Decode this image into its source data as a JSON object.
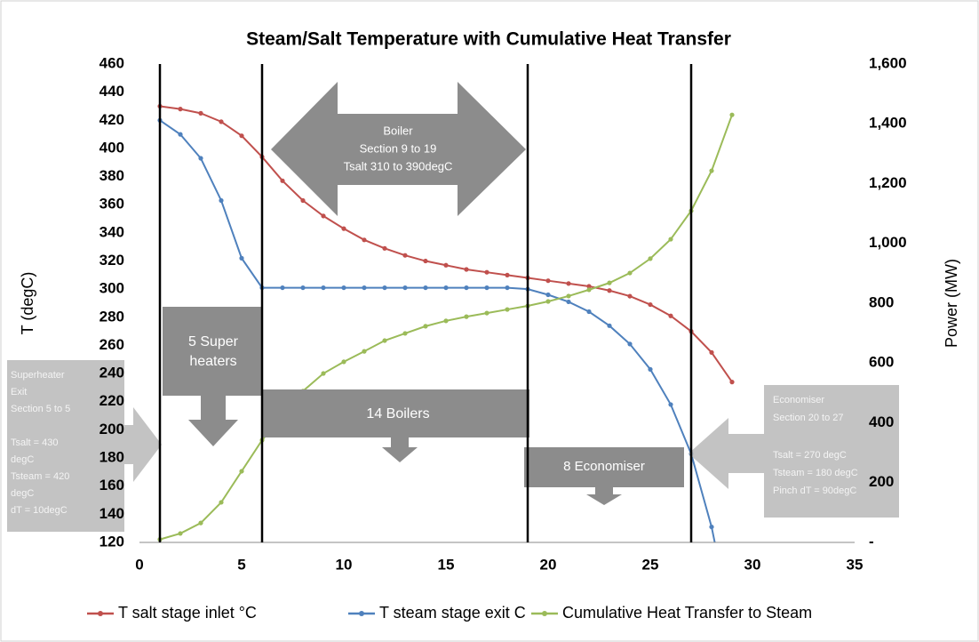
{
  "chart_data": {
    "type": "line",
    "title": "Steam/Salt Temperature with Cumulative Heat Transfer",
    "y_label": "T (degC)",
    "y2_label": "Power (MW)",
    "x": [
      1,
      2,
      3,
      4,
      5,
      6,
      7,
      8,
      9,
      10,
      11,
      12,
      13,
      14,
      15,
      16,
      17,
      18,
      19,
      20,
      21,
      22,
      23,
      24,
      25,
      26,
      27,
      28,
      29
    ],
    "series": [
      {
        "name": "T salt stage inlet °C",
        "color": "#c0504d",
        "values": [
          430,
          428,
          425,
          419,
          409,
          394,
          377,
          363,
          352,
          343,
          335,
          329,
          324,
          320,
          317,
          314,
          312,
          310,
          308,
          306,
          304,
          302,
          299,
          295,
          289,
          281,
          270,
          255,
          234
        ]
      },
      {
        "name": "T steam stage exit C",
        "color": "#4f81bd",
        "values": [
          420,
          410,
          393,
          363,
          322,
          301,
          301,
          301,
          301,
          301,
          301,
          301,
          301,
          301,
          301,
          301,
          301,
          301,
          300,
          296,
          291,
          284,
          274,
          261,
          243,
          218,
          183,
          131,
          60
        ]
      },
      {
        "name": "Cumulative Heat Transfer to Steam",
        "color": "#9bbb59",
        "axis": "y2",
        "values": [
          10,
          30,
          65,
          134,
          238,
          342,
          422,
          506,
          565,
          604,
          639,
          675,
          699,
          723,
          741,
          755,
          767,
          779,
          791,
          806,
          824,
          845,
          868,
          901,
          949,
          1014,
          1109,
          1243,
          1430
        ]
      }
    ],
    "xlim": [
      0,
      35
    ],
    "xticks": [
      0,
      5,
      10,
      15,
      20,
      25,
      30,
      35
    ],
    "ylim": [
      120,
      460
    ],
    "yticks": [
      120,
      140,
      160,
      180,
      200,
      220,
      240,
      260,
      280,
      300,
      320,
      340,
      360,
      380,
      400,
      420,
      440,
      460
    ],
    "y2lim": [
      0,
      1600
    ],
    "y2ticks": [
      {
        "value": 0,
        "label": "-"
      },
      200,
      400,
      600,
      800,
      {
        "value": 1000,
        "label": "1,000"
      },
      {
        "value": 1200,
        "label": "1,200"
      },
      {
        "value": 1400,
        "label": "1,400"
      },
      {
        "value": 1600,
        "label": "1,600"
      }
    ],
    "vlines": [
      1,
      6,
      19,
      27
    ],
    "grid": false,
    "legend": "bottom",
    "annotations": [
      {
        "lines": [
          "Boiler",
          "Section 9 to 19",
          "Tsalt 310 to 390degC"
        ]
      },
      {
        "lines": [
          "5 Super",
          "heaters"
        ]
      },
      {
        "lines": [
          "14 Boilers"
        ]
      },
      {
        "lines": [
          "8 Economiser"
        ]
      },
      {
        "lines": [
          "Superheater",
          "Exit",
          "Section 5 to 5",
          "Tsalt = 430",
          "degC",
          "Tsteam = 420",
          "degC",
          "dT = 10degC"
        ]
      },
      {
        "lines": [
          "Economiser",
          "Section 20 to 27",
          "Tsalt = 270 degC",
          "Tsteam = 180 degC",
          "Pinch dT = 90degC"
        ]
      }
    ]
  }
}
